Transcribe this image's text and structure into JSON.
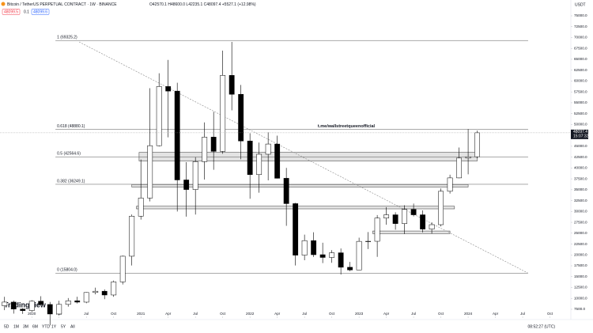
{
  "header": {
    "symbol": "Bitcoin / TetherUS PERPETUAL CONTRACT · 1W · BINANCE",
    "ohlc": "O42570.1 H48600.0 L42235.1 C48097.4 +5527.1 (+12.98%)",
    "bid": "48099.5",
    "spread": "0.1",
    "ask": "48099.6"
  },
  "chart_data": {
    "type": "candlestick",
    "currency": "USDT",
    "annotation": "t.me/wallstreetqueenofficial",
    "logo": "TradingView",
    "last_price": 48097.4,
    "last_price_label": "48097.4",
    "countdown": "15:07:32",
    "xlim": [
      -0.5,
      62.3
    ],
    "ylim": [
      5860,
      78640
    ],
    "xticks": [
      {
        "value": 3,
        "label": "2020"
      },
      {
        "value": 6,
        "label": "Apr"
      },
      {
        "value": 9,
        "label": "Jul"
      },
      {
        "value": 12,
        "label": "Oct"
      },
      {
        "value": 15,
        "label": "2021"
      },
      {
        "value": 18,
        "label": "Apr"
      },
      {
        "value": 21,
        "label": "Jul"
      },
      {
        "value": 24,
        "label": "Oct"
      },
      {
        "value": 27,
        "label": "2022"
      },
      {
        "value": 30,
        "label": "Apr"
      },
      {
        "value": 33,
        "label": "Jul"
      },
      {
        "value": 36,
        "label": "Oct"
      },
      {
        "value": 39,
        "label": "2023"
      },
      {
        "value": 42,
        "label": "Apr"
      },
      {
        "value": 45,
        "label": "Jul"
      },
      {
        "value": 48,
        "label": "Oct"
      },
      {
        "value": 51,
        "label": "2024"
      },
      {
        "value": 54,
        "label": "Apr"
      },
      {
        "value": 57,
        "label": "Jul"
      },
      {
        "value": 60,
        "label": "Oct"
      }
    ],
    "yticks": [
      {
        "value": 75000,
        "label": "75000.0"
      },
      {
        "value": 72500,
        "label": "72500.0"
      },
      {
        "value": 70000,
        "label": "70000.0"
      },
      {
        "value": 67500,
        "label": "67500.0"
      },
      {
        "value": 65000,
        "label": "65000.0"
      },
      {
        "value": 62500,
        "label": "62500.0"
      },
      {
        "value": 60000,
        "label": "60000.0"
      },
      {
        "value": 57500,
        "label": "57500.0"
      },
      {
        "value": 55000,
        "label": "55000.0"
      },
      {
        "value": 52500,
        "label": "52500.0"
      },
      {
        "value": 50000,
        "label": "50000.0"
      },
      {
        "value": 45000,
        "label": "45000.0"
      },
      {
        "value": 42500,
        "label": "42500.0"
      },
      {
        "value": 40000,
        "label": "40000.0"
      },
      {
        "value": 37500,
        "label": "37500.0"
      },
      {
        "value": 35000,
        "label": "35000.0"
      },
      {
        "value": 32500,
        "label": "32500.0"
      },
      {
        "value": 30000,
        "label": "30000.0"
      },
      {
        "value": 27500,
        "label": "27500.0"
      },
      {
        "value": 25000,
        "label": "25000.0"
      },
      {
        "value": 22500,
        "label": "22500.0"
      },
      {
        "value": 20000,
        "label": "20000.0"
      },
      {
        "value": 17500,
        "label": "17500.0"
      },
      {
        "value": 15000,
        "label": "15000.0"
      },
      {
        "value": 12500,
        "label": "12500.0"
      },
      {
        "value": 10000,
        "label": "10000.0"
      },
      {
        "value": 7500,
        "label": "7500.0"
      }
    ],
    "fib_levels": [
      {
        "value": 69325.2,
        "label": "1 (69325.2)"
      },
      {
        "value": 48880.1,
        "label": "0.618 (48880.1)"
      },
      {
        "value": 42564.6,
        "label": "0.5 (42564.6)"
      },
      {
        "value": 36249.1,
        "label": "0.382 (36249.1)"
      },
      {
        "value": 15804.0,
        "label": "0 (15804.0)"
      }
    ],
    "fib_range": [
      5.6,
      57.6
    ],
    "zones": [
      {
        "top": 43600,
        "bottom": 41600,
        "start": 14.8,
        "end": 52
      },
      {
        "top": 36200,
        "bottom": 35600,
        "start": 14,
        "end": 51
      },
      {
        "top": 31200,
        "bottom": 30600,
        "start": 14.5,
        "end": 49.5
      },
      {
        "top": 25500,
        "bottom": 24900,
        "start": 40.5,
        "end": 49
      }
    ],
    "trendline": {
      "start": [
        8.2,
        69000
      ],
      "end": [
        57.6,
        15804
      ]
    },
    "candles": [
      {
        "open": 8300,
        "high": 10370,
        "low": 7300,
        "close": 9150
      },
      {
        "open": 9150,
        "high": 9500,
        "low": 6500,
        "close": 7540
      },
      {
        "open": 7540,
        "high": 7750,
        "low": 6430,
        "close": 7190
      },
      {
        "open": 7190,
        "high": 9580,
        "low": 6850,
        "close": 9350
      },
      {
        "open": 9350,
        "high": 10500,
        "low": 8450,
        "close": 8600
      },
      {
        "open": 8600,
        "high": 9190,
        "low": 3800,
        "close": 6410
      },
      {
        "open": 6410,
        "high": 9460,
        "low": 6150,
        "close": 8620
      },
      {
        "open": 8620,
        "high": 10080,
        "low": 8100,
        "close": 9450
      },
      {
        "open": 9450,
        "high": 10380,
        "low": 8830,
        "close": 9140
      },
      {
        "open": 9140,
        "high": 11440,
        "low": 8890,
        "close": 11350
      },
      {
        "open": 11350,
        "high": 12470,
        "low": 10930,
        "close": 11650
      },
      {
        "open": 11650,
        "high": 12070,
        "low": 9820,
        "close": 10780
      },
      {
        "open": 10780,
        "high": 14100,
        "low": 10370,
        "close": 13800
      },
      {
        "open": 13800,
        "high": 19860,
        "low": 13200,
        "close": 19700
      },
      {
        "open": 19700,
        "high": 29300,
        "low": 17570,
        "close": 28920
      },
      {
        "open": 28920,
        "high": 41950,
        "low": 28130,
        "close": 33090
      },
      {
        "open": 33090,
        "high": 58350,
        "low": 32300,
        "close": 45130
      },
      {
        "open": 45130,
        "high": 61780,
        "low": 44960,
        "close": 58740
      },
      {
        "open": 58740,
        "high": 64850,
        "low": 47040,
        "close": 57690
      },
      {
        "open": 57690,
        "high": 59600,
        "low": 30000,
        "close": 37250
      },
      {
        "open": 37250,
        "high": 41330,
        "low": 28800,
        "close": 35040
      },
      {
        "open": 35040,
        "high": 42450,
        "low": 29280,
        "close": 41460
      },
      {
        "open": 41460,
        "high": 50480,
        "low": 37330,
        "close": 47100
      },
      {
        "open": 47100,
        "high": 52920,
        "low": 39600,
        "close": 43820
      },
      {
        "open": 43820,
        "high": 67000,
        "low": 43280,
        "close": 61300
      },
      {
        "open": 61300,
        "high": 69000,
        "low": 53250,
        "close": 56950
      },
      {
        "open": 56950,
        "high": 59100,
        "low": 42000,
        "close": 46210
      },
      {
        "open": 46210,
        "high": 47990,
        "low": 32920,
        "close": 38470
      },
      {
        "open": 38470,
        "high": 45850,
        "low": 34320,
        "close": 43160
      },
      {
        "open": 43160,
        "high": 48190,
        "low": 37150,
        "close": 45510
      },
      {
        "open": 45510,
        "high": 47440,
        "low": 37580,
        "close": 37630
      },
      {
        "open": 37630,
        "high": 40020,
        "low": 26700,
        "close": 31800
      },
      {
        "open": 31800,
        "high": 31980,
        "low": 17570,
        "close": 19940
      },
      {
        "open": 19940,
        "high": 24670,
        "low": 18780,
        "close": 23290
      },
      {
        "open": 23290,
        "high": 25210,
        "low": 19520,
        "close": 20050
      },
      {
        "open": 20050,
        "high": 22800,
        "low": 18130,
        "close": 19420
      },
      {
        "open": 19420,
        "high": 21090,
        "low": 18190,
        "close": 20490
      },
      {
        "open": 20490,
        "high": 21480,
        "low": 15480,
        "close": 17160
      },
      {
        "open": 17160,
        "high": 18390,
        "low": 16260,
        "close": 16540
      },
      {
        "open": 16540,
        "high": 23960,
        "low": 16500,
        "close": 23120
      },
      {
        "open": 23120,
        "high": 25250,
        "low": 21350,
        "close": 23140
      },
      {
        "open": 23140,
        "high": 29180,
        "low": 19550,
        "close": 28470
      },
      {
        "open": 28470,
        "high": 31000,
        "low": 26940,
        "close": 29230
      },
      {
        "open": 29230,
        "high": 29820,
        "low": 25810,
        "close": 27210
      },
      {
        "open": 27210,
        "high": 31430,
        "low": 24800,
        "close": 30470
      },
      {
        "open": 30470,
        "high": 31800,
        "low": 28860,
        "close": 29230
      },
      {
        "open": 29230,
        "high": 30240,
        "low": 25170,
        "close": 25940
      },
      {
        "open": 25940,
        "high": 27480,
        "low": 24900,
        "close": 26960
      },
      {
        "open": 26960,
        "high": 35280,
        "low": 26550,
        "close": 34640
      },
      {
        "open": 34640,
        "high": 38450,
        "low": 34100,
        "close": 37720
      },
      {
        "open": 37720,
        "high": 44700,
        "low": 37630,
        "close": 42280
      },
      {
        "open": 42280,
        "high": 48970,
        "low": 38550,
        "close": 42580
      },
      {
        "open": 42580,
        "high": 48600,
        "low": 42230,
        "close": 48097
      }
    ]
  },
  "footer": {
    "ranges": [
      "5D",
      "1M",
      "3M",
      "6M",
      "YTD",
      "1Y",
      "5Y",
      "All"
    ],
    "clock": "08:52:27 (UTC)"
  }
}
